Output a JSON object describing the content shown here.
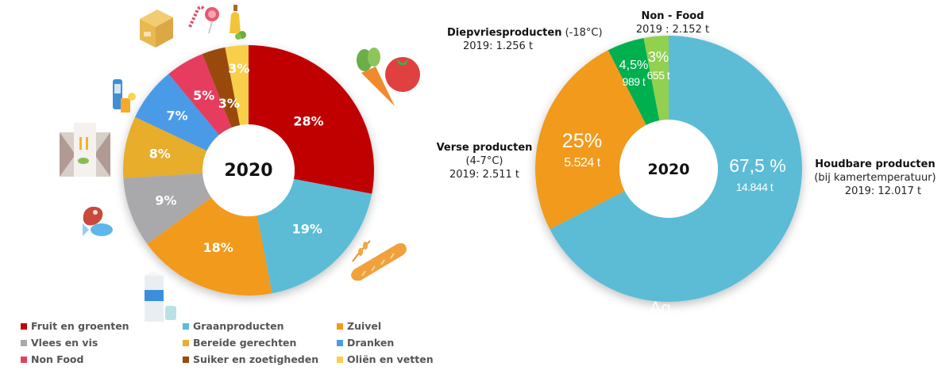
{
  "chart_data": [
    {
      "type": "pie",
      "variant": "donut",
      "center_label": "2020",
      "slices": [
        {
          "name": "Fruit en groenten",
          "value": 28,
          "label": "28%",
          "color": "#c00000"
        },
        {
          "name": "Graanproducten",
          "value": 19,
          "label": "19%",
          "color": "#5bbcd6"
        },
        {
          "name": "Zuivel",
          "value": 18,
          "label": "18%",
          "color": "#f29a1e"
        },
        {
          "name": "Vlees en vis",
          "value": 9,
          "label": "9%",
          "color": "#a9a9ab"
        },
        {
          "name": "Bereide gerechten",
          "value": 8,
          "label": "8%",
          "color": "#e8ad2a"
        },
        {
          "name": "Dranken",
          "value": 7,
          "label": "7%",
          "color": "#4a9be8"
        },
        {
          "name": "Non Food",
          "value": 5,
          "label": "5%",
          "color": "#e63c5e"
        },
        {
          "name": "Suiker en zoetigheden",
          "value": 3,
          "label": "3%",
          "color": "#9a4a0b"
        },
        {
          "name": "Oliën en vetten",
          "value": 3,
          "label": "3%",
          "color": "#f7cf48"
        }
      ],
      "legend": {
        "placement": "bottom",
        "entries": [
          {
            "label": "Fruit en groenten",
            "color": "#c00000"
          },
          {
            "label": "Graanproducten",
            "color": "#5bbcd6"
          },
          {
            "label": "Zuivel",
            "color": "#f29a1e"
          },
          {
            "label": "Vlees en vis",
            "color": "#a9a9ab"
          },
          {
            "label": "Bereide gerechten",
            "color": "#e8ad2a"
          },
          {
            "label": "Dranken",
            "color": "#4a9be8"
          },
          {
            "label": "Non Food",
            "color": "#e63c5e"
          },
          {
            "label": "Suiker en zoetigheden",
            "color": "#9a4a0b"
          },
          {
            "label": "Oliën en vetten",
            "color": "#f7cf48"
          }
        ]
      }
    },
    {
      "type": "pie",
      "variant": "donut",
      "center_label": "2020",
      "slices": [
        {
          "name": "Houdbare producten",
          "value": 67.5,
          "label": "67,5 %",
          "sublabel": "14.844 t",
          "color": "#5bbcd6"
        },
        {
          "name": "Verse producten",
          "value": 25,
          "label": "25%",
          "sublabel": "5.524 t",
          "color": "#f29a1e"
        },
        {
          "name": "Diepvriesproducten",
          "value": 4.5,
          "label": "4,5%",
          "sublabel": "989 t",
          "color": "#00b050"
        },
        {
          "name": "Non - Food",
          "value": 3,
          "label": "3%",
          "sublabel": "655 t",
          "color": "#92d050"
        }
      ],
      "annotations": {
        "houdbaar": {
          "title": "Houdbare producten",
          "line2": "(bij kamertemperatuur)",
          "line3": "2019: 12.017 t"
        },
        "vers": {
          "title": "Verse producten",
          "line2": "(4-7°C)",
          "line3": "2019: 2.511 t"
        },
        "diepvries": {
          "title": "Diepvriesproducten",
          "title_suffix": "(-18°C)",
          "line2": "2019: 1.256 t"
        },
        "nonfood": {
          "title": "Non - Food",
          "line2": "2019 : 2.152 t"
        }
      },
      "footer_fragment": "Ag"
    }
  ],
  "icons": [
    "box-icon",
    "candy-icon",
    "oil-bottle-icon",
    "vegetables-icon",
    "drinks-icon",
    "meal-bag-icon",
    "meat-fish-icon",
    "milk-icon",
    "bread-icon"
  ]
}
